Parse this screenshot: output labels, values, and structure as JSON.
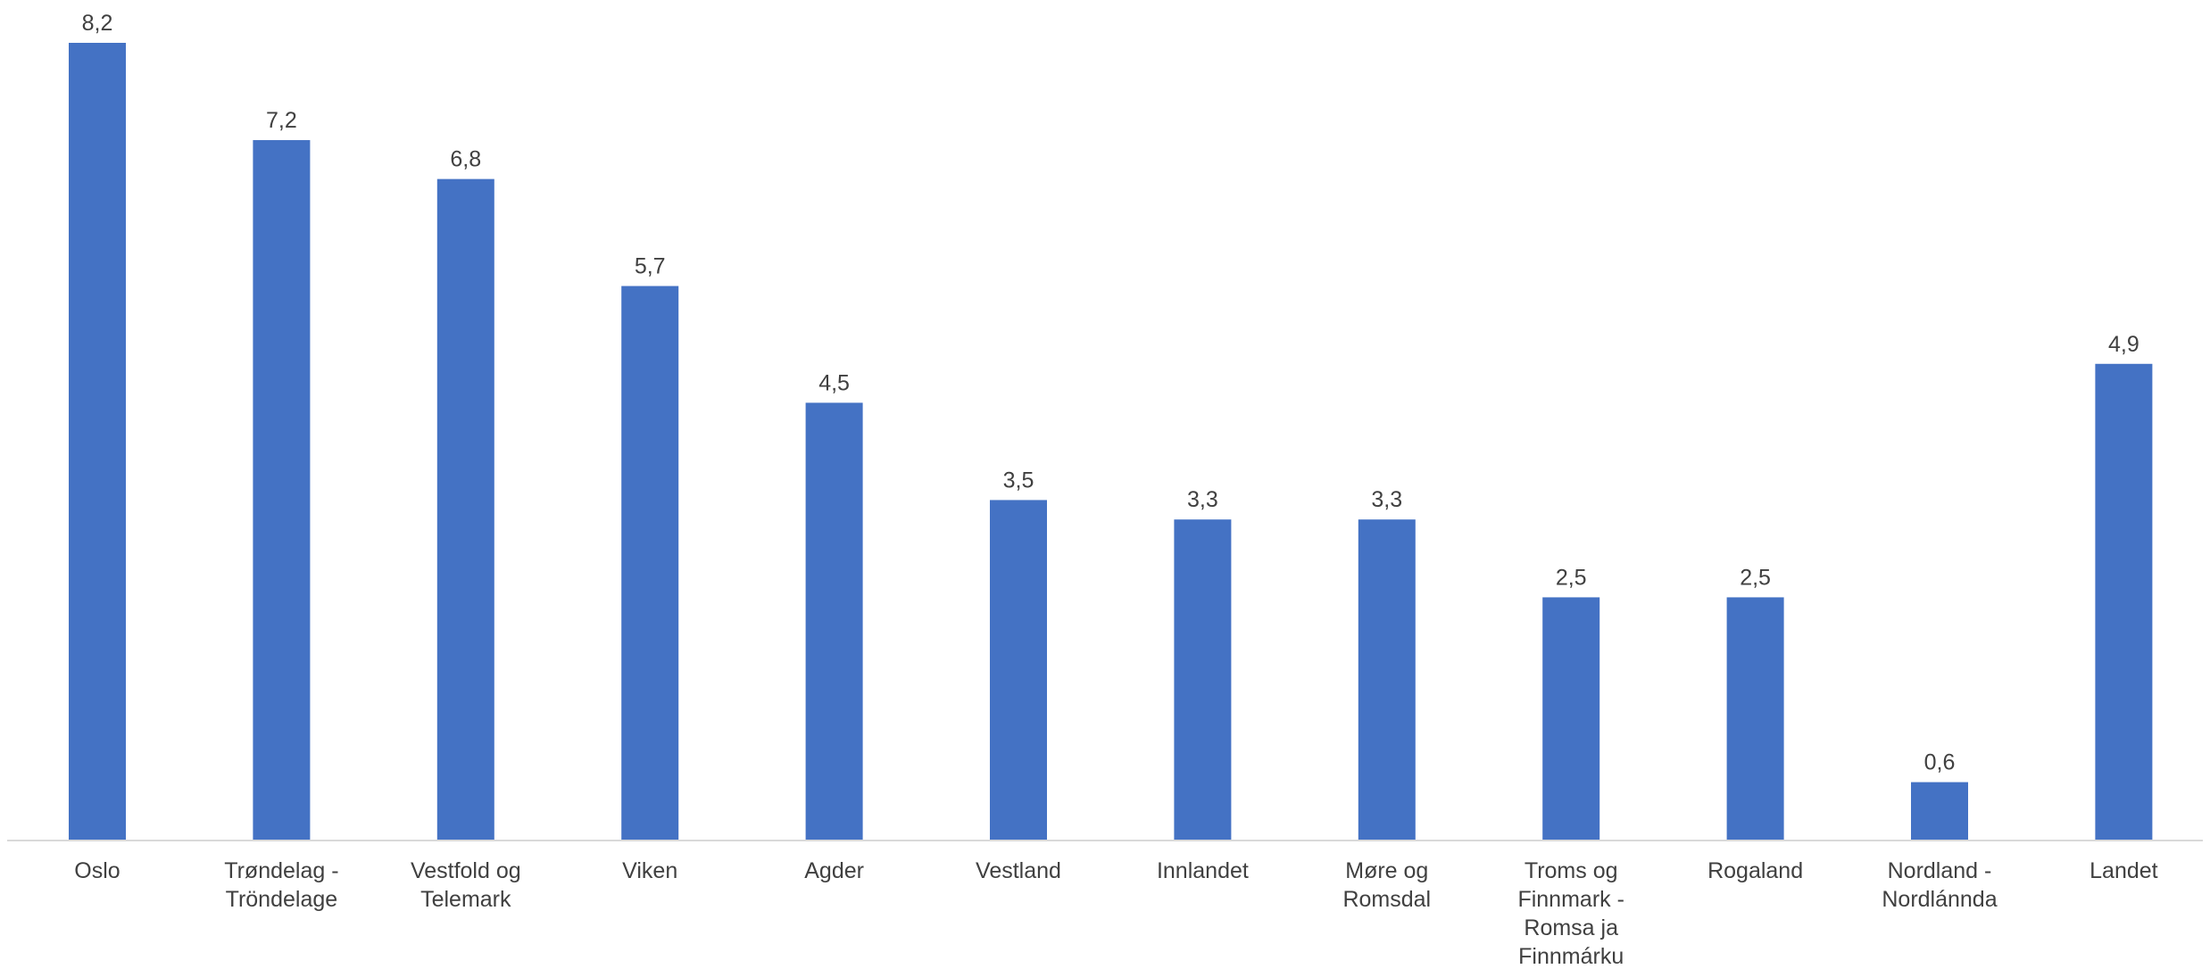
{
  "chart_data": {
    "type": "bar",
    "categories": [
      [
        "Oslo"
      ],
      [
        "Trøndelag -",
        "Tröndelage"
      ],
      [
        "Vestfold og",
        "Telemark"
      ],
      [
        "Viken"
      ],
      [
        "Agder"
      ],
      [
        "Vestland"
      ],
      [
        "Innlandet"
      ],
      [
        "Møre og",
        "Romsdal"
      ],
      [
        "Troms og",
        "Finnmark -",
        "Romsa ja",
        "Finnmárku"
      ],
      [
        "Rogaland"
      ],
      [
        "Nordland -",
        "Nordlánnda"
      ],
      [
        "Landet"
      ]
    ],
    "values": [
      8.2,
      7.2,
      6.8,
      5.7,
      4.5,
      3.5,
      3.3,
      3.3,
      2.5,
      2.5,
      0.6,
      4.9
    ],
    "value_labels": [
      "8,2",
      "7,2",
      "6,8",
      "5,7",
      "4,5",
      "3,5",
      "3,3",
      "3,3",
      "2,5",
      "2,5",
      "0,6",
      "4,9"
    ],
    "ylim": [
      0,
      8.2
    ],
    "bar_color": "#4472C4",
    "axis_color": "#D9D9D9",
    "grid": false,
    "legend": "none",
    "title": "",
    "xlabel": "",
    "ylabel": ""
  }
}
